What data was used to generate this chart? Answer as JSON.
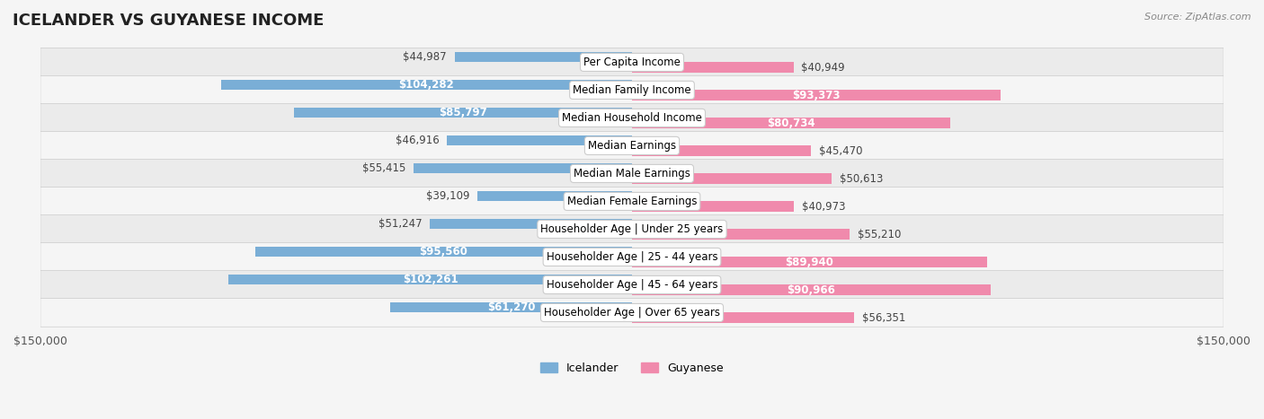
{
  "title": "ICELANDER VS GUYANESE INCOME",
  "source": "Source: ZipAtlas.com",
  "categories": [
    "Per Capita Income",
    "Median Family Income",
    "Median Household Income",
    "Median Earnings",
    "Median Male Earnings",
    "Median Female Earnings",
    "Householder Age | Under 25 years",
    "Householder Age | 25 - 44 years",
    "Householder Age | 45 - 64 years",
    "Householder Age | Over 65 years"
  ],
  "icelander_values": [
    44987,
    104282,
    85797,
    46916,
    55415,
    39109,
    51247,
    95560,
    102261,
    61270
  ],
  "guyanese_values": [
    40949,
    93373,
    80734,
    45470,
    50613,
    40973,
    55210,
    89940,
    90966,
    56351
  ],
  "icelander_labels": [
    "$44,987",
    "$104,282",
    "$85,797",
    "$46,916",
    "$55,415",
    "$39,109",
    "$51,247",
    "$95,560",
    "$102,261",
    "$61,270"
  ],
  "guyanese_labels": [
    "$40,949",
    "$93,373",
    "$80,734",
    "$45,470",
    "$50,613",
    "$40,973",
    "$55,210",
    "$89,940",
    "$90,966",
    "$56,351"
  ],
  "icelander_color": "#7aaed6",
  "guyanese_color": "#f08aac",
  "icelander_color_bold": "#5b9bd5",
  "guyanese_color_bold": "#e96090",
  "max_value": 150000,
  "bg_color": "#f5f5f5",
  "row_bg_even": "#ebebeb",
  "row_bg_odd": "#f5f5f5",
  "title_fontsize": 13,
  "label_fontsize": 8.5,
  "axis_label_fontsize": 9,
  "legend_fontsize": 9
}
